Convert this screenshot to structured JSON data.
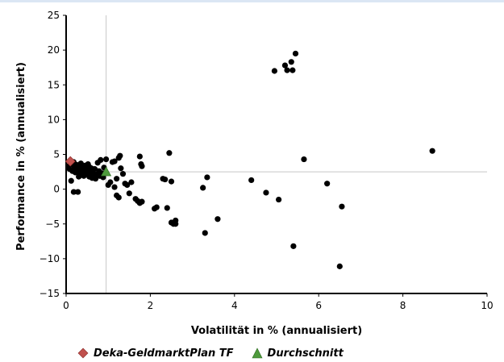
{
  "chart_data": {
    "type": "scatter",
    "xlabel": "Volatilität in % (annualisiert)",
    "ylabel": "Performance in % (annualisiert)",
    "xlim": [
      0,
      10
    ],
    "ylim": [
      -15,
      25
    ],
    "xticks": [
      0,
      2,
      4,
      6,
      8,
      10
    ],
    "yticks": [
      -15,
      -10,
      -5,
      0,
      5,
      10,
      15,
      20,
      25
    ],
    "grid": false,
    "legend_position": "bottom",
    "reference_lines": {
      "x": 0.95,
      "y": 2.5
    },
    "series": [
      {
        "name": "Deka-GeldmarktPlan TF",
        "marker": "diamond",
        "color": "#c0504d",
        "points": [
          [
            0.1,
            4.0
          ]
        ]
      },
      {
        "name": "Durchschnitt",
        "marker": "triangle",
        "color": "#4e9a3c",
        "points": [
          [
            0.95,
            2.5
          ]
        ]
      },
      {
        "marker": "circle",
        "color": "#000000",
        "points": [
          [
            0.05,
            3.3
          ],
          [
            0.08,
            2.9
          ],
          [
            0.12,
            3.6
          ],
          [
            0.15,
            2.6
          ],
          [
            0.18,
            3.9
          ],
          [
            0.2,
            3.1
          ],
          [
            0.22,
            2.4
          ],
          [
            0.25,
            3.5
          ],
          [
            0.28,
            2.8
          ],
          [
            0.3,
            3.2
          ],
          [
            0.32,
            2.1
          ],
          [
            0.35,
            3.7
          ],
          [
            0.38,
            2.5
          ],
          [
            0.4,
            3.0
          ],
          [
            0.42,
            1.9
          ],
          [
            0.45,
            3.4
          ],
          [
            0.48,
            2.2
          ],
          [
            0.5,
            2.7
          ],
          [
            0.52,
            3.6
          ],
          [
            0.55,
            1.8
          ],
          [
            0.58,
            2.4
          ],
          [
            0.6,
            3.0
          ],
          [
            0.62,
            1.6
          ],
          [
            0.65,
            2.2
          ],
          [
            0.68,
            2.9
          ],
          [
            0.7,
            1.5
          ],
          [
            0.72,
            2.1
          ],
          [
            0.75,
            3.8
          ],
          [
            0.78,
            2.6
          ],
          [
            0.8,
            1.9
          ],
          [
            0.82,
            4.2
          ],
          [
            0.85,
            2.3
          ],
          [
            0.88,
            1.7
          ],
          [
            0.9,
            3.1
          ],
          [
            0.12,
            1.2
          ],
          [
            0.18,
            -0.4
          ],
          [
            0.28,
            -0.4
          ],
          [
            0.3,
            1.8
          ],
          [
            0.45,
            2.8
          ],
          [
            0.55,
            3.2
          ],
          [
            0.95,
            4.3
          ],
          [
            1.0,
            0.6
          ],
          [
            1.05,
            1.0
          ],
          [
            1.1,
            3.9
          ],
          [
            1.15,
            4.0
          ],
          [
            1.2,
            1.5
          ],
          [
            1.25,
            4.5
          ],
          [
            1.28,
            4.8
          ],
          [
            1.3,
            3.0
          ],
          [
            1.35,
            2.2
          ],
          [
            1.4,
            0.8
          ],
          [
            1.45,
            0.6
          ],
          [
            1.5,
            -0.6
          ],
          [
            1.55,
            1.0
          ],
          [
            1.15,
            0.3
          ],
          [
            1.2,
            -0.9
          ],
          [
            1.25,
            -1.2
          ],
          [
            1.65,
            -1.4
          ],
          [
            1.7,
            -1.7
          ],
          [
            1.75,
            -2.0
          ],
          [
            1.8,
            -1.8
          ],
          [
            1.75,
            4.7
          ],
          [
            1.78,
            3.6
          ],
          [
            1.8,
            3.3
          ],
          [
            2.1,
            -2.8
          ],
          [
            2.15,
            -2.6
          ],
          [
            2.3,
            1.5
          ],
          [
            2.35,
            1.4
          ],
          [
            2.4,
            -2.7
          ],
          [
            2.45,
            5.2
          ],
          [
            2.5,
            1.1
          ],
          [
            2.5,
            -4.8
          ],
          [
            2.55,
            -5.0
          ],
          [
            2.6,
            -4.5
          ],
          [
            2.6,
            -5.0
          ],
          [
            3.25,
            0.2
          ],
          [
            3.35,
            1.7
          ],
          [
            3.3,
            -6.3
          ],
          [
            3.6,
            -4.3
          ],
          [
            4.4,
            1.3
          ],
          [
            4.75,
            -0.5
          ],
          [
            5.05,
            -1.5
          ],
          [
            4.95,
            17.0
          ],
          [
            5.2,
            17.8
          ],
          [
            5.25,
            17.1
          ],
          [
            5.35,
            18.3
          ],
          [
            5.38,
            17.1
          ],
          [
            5.45,
            19.5
          ],
          [
            5.4,
            -8.2
          ],
          [
            5.65,
            4.3
          ],
          [
            6.2,
            0.8
          ],
          [
            6.5,
            -11.1
          ],
          [
            6.55,
            -2.5
          ],
          [
            8.7,
            5.5
          ]
        ]
      }
    ]
  }
}
